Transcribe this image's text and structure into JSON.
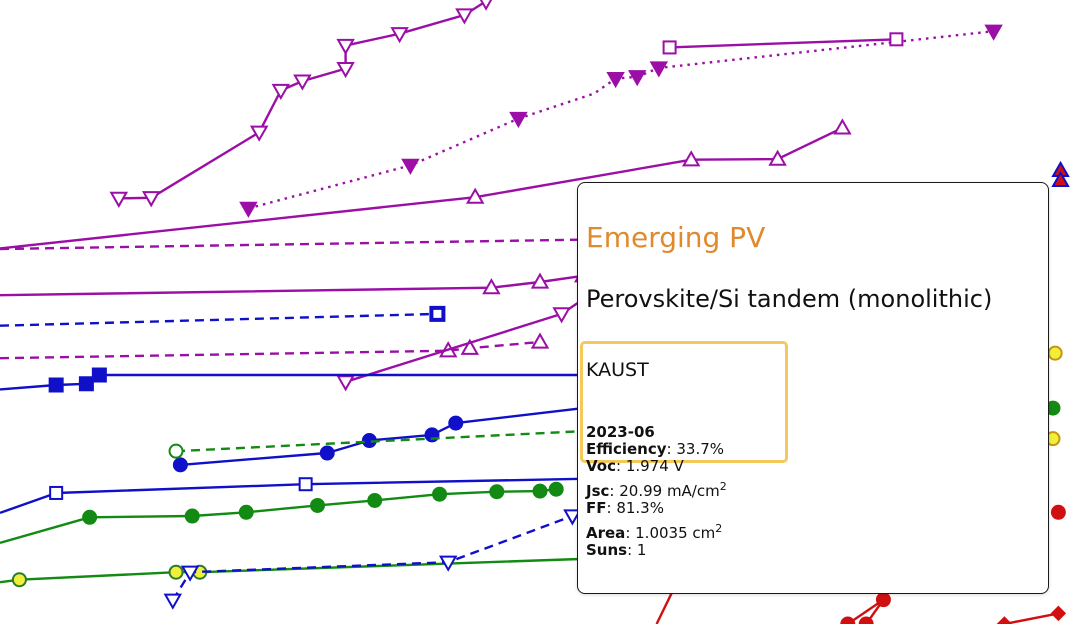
{
  "chart_data": {
    "type": "line",
    "xlabel": "",
    "ylabel": "",
    "series": [
      {
        "color": "#9b0fa6",
        "marker": "triangle-down-open",
        "line": "solid",
        "x": [
          0.11,
          0.14,
          0.24,
          0.26,
          0.28,
          0.32,
          0.32,
          0.37,
          0.43,
          0.45
        ],
        "y": [
          0.682,
          0.683,
          0.788,
          0.855,
          0.87,
          0.89,
          0.927,
          0.946,
          0.976,
          0.998
        ]
      },
      {
        "color": "#9b0fa6",
        "marker": "triangle-down-filled",
        "line": "dotted",
        "x": [
          0.23,
          0.38,
          0.48,
          0.55,
          0.57,
          0.59,
          0.61,
          0.92
        ],
        "y": [
          0.666,
          0.735,
          0.81,
          0.85,
          0.874,
          0.877,
          0.891,
          0.95
        ]
      },
      {
        "color": "#9b0fa6",
        "marker": "square-open",
        "line": "solid",
        "x": [
          0.62,
          0.83
        ],
        "y": [
          0.924,
          0.937
        ]
      },
      {
        "color": "#9b0fa6",
        "marker": "triangle-up-open",
        "line": "solid",
        "x": [
          0.0,
          0.44,
          0.64,
          0.72,
          0.78
        ],
        "y": [
          0.602,
          0.684,
          0.744,
          0.745,
          0.795
        ]
      },
      {
        "color": "#9b0fa6",
        "marker": "none",
        "line": "dashed",
        "x": [
          0.0,
          0.54
        ],
        "y": [
          0.601,
          0.616
        ]
      },
      {
        "color": "#9b0fa6",
        "marker": "triangle-up-open",
        "line": "solid",
        "x": [
          0.0,
          0.455,
          0.5,
          0.54
        ],
        "y": [
          0.527,
          0.539,
          0.548,
          0.558
        ]
      },
      {
        "color": "#9b0fa6",
        "marker": "triangle-up-open",
        "line": "dashed",
        "x": [
          0.0,
          0.415,
          0.435,
          0.5
        ],
        "y": [
          0.426,
          0.438,
          0.442,
          0.452
        ]
      },
      {
        "color": "#9b0fa6",
        "marker": "triangle-down-open",
        "line": "solid",
        "x": [
          0.32,
          0.52,
          0.55
        ],
        "y": [
          0.388,
          0.497,
          0.532
        ]
      },
      {
        "color": "#1010c8",
        "marker": "square-open",
        "line": "dashed",
        "x": [
          0.0,
          0.405
        ],
        "y": [
          0.478,
          0.497
        ]
      },
      {
        "color": "#1010c8",
        "marker": "square-filled",
        "line": "solid",
        "x": [
          0.0,
          0.052,
          0.08,
          0.092,
          0.55
        ],
        "y": [
          0.376,
          0.383,
          0.385,
          0.399,
          0.399
        ]
      },
      {
        "color": "#1010c8",
        "marker": "circle-filled",
        "line": "solid",
        "x": [
          0.167,
          0.303,
          0.342,
          0.4,
          0.422,
          0.55
        ],
        "y": [
          0.255,
          0.274,
          0.294,
          0.303,
          0.322,
          0.348
        ]
      },
      {
        "color": "#138a13",
        "marker": "circle-open",
        "line": "dashed",
        "x": [
          0.163,
          0.55
        ],
        "y": [
          0.277,
          0.31
        ]
      },
      {
        "color": "#1010c8",
        "marker": "square-open",
        "line": "solid",
        "x": [
          0.0,
          0.052,
          0.283,
          0.55
        ],
        "y": [
          0.178,
          0.21,
          0.224,
          0.233
        ]
      },
      {
        "color": "#138a13",
        "marker": "circle-filled",
        "line": "solid",
        "x": [
          0.0,
          0.083,
          0.178,
          0.228,
          0.294,
          0.347,
          0.407,
          0.46,
          0.5,
          0.515
        ],
        "y": [
          0.13,
          0.171,
          0.173,
          0.179,
          0.19,
          0.198,
          0.208,
          0.212,
          0.213,
          0.216
        ]
      },
      {
        "color": "#138a13",
        "marker": "circle-filled-yellow",
        "line": "solid",
        "x": [
          0.0,
          0.018,
          0.163,
          0.185,
          0.55
        ],
        "y": [
          0.067,
          0.071,
          0.083,
          0.083,
          0.105
        ]
      },
      {
        "color": "#1010c8",
        "marker": "triangle-down-open",
        "line": "dashed",
        "x": [
          0.16,
          0.176,
          0.415,
          0.53
        ],
        "y": [
          0.038,
          0.083,
          0.099,
          0.173
        ]
      },
      {
        "color": "#d01010",
        "marker": "none",
        "line": "solid",
        "x": [
          0.622,
          0.608
        ],
        "y": [
          0.05,
          0.0
        ]
      },
      {
        "color": "#d01010",
        "marker": "circle-filled",
        "line": "solid",
        "x": [
          0.785,
          0.818,
          0.802
        ],
        "y": [
          0.0,
          0.039,
          0.0
        ]
      },
      {
        "color": "#d01010",
        "marker": "diamond-filled",
        "line": "solid",
        "x": [
          0.93,
          0.98
        ],
        "y": [
          0.0,
          0.017
        ]
      },
      {
        "color": "#d01010",
        "marker": "triangle-up-filled",
        "line": "none",
        "x": [
          0.982,
          0.982
        ],
        "y": [
          0.727,
          0.711
        ]
      },
      {
        "color": "#e0e020",
        "marker": "circle-filled-yellow",
        "line": "none",
        "x": [
          0.977,
          0.975
        ],
        "y": [
          0.434,
          0.297
        ]
      },
      {
        "color": "#138a13",
        "marker": "circle-filled",
        "line": "none",
        "x": [
          0.975
        ],
        "y": [
          0.346
        ]
      },
      {
        "color": "#d01010",
        "marker": "circle-filled",
        "line": "none",
        "x": [
          0.98
        ],
        "y": [
          0.179
        ]
      }
    ]
  },
  "tooltip": {
    "category": "Emerging PV",
    "device": "Perovskite/Si tandem (monolithic)",
    "institution": "KAUST",
    "date": "2023-06",
    "efficiency_label": "Efficiency",
    "efficiency_value": ": 33.7%",
    "voc_label": "Voc",
    "voc_value": ": 1.974 V",
    "jsc_label": "Jsc",
    "jsc_value": ": 20.99 mA/cm",
    "jsc_sup": "2",
    "ff_label": "FF",
    "ff_value": ": 81.3%",
    "area_label": "Area",
    "area_value": ": 1.0035 cm",
    "area_sup": "2",
    "suns_label": "Suns",
    "suns_value": ": 1"
  }
}
